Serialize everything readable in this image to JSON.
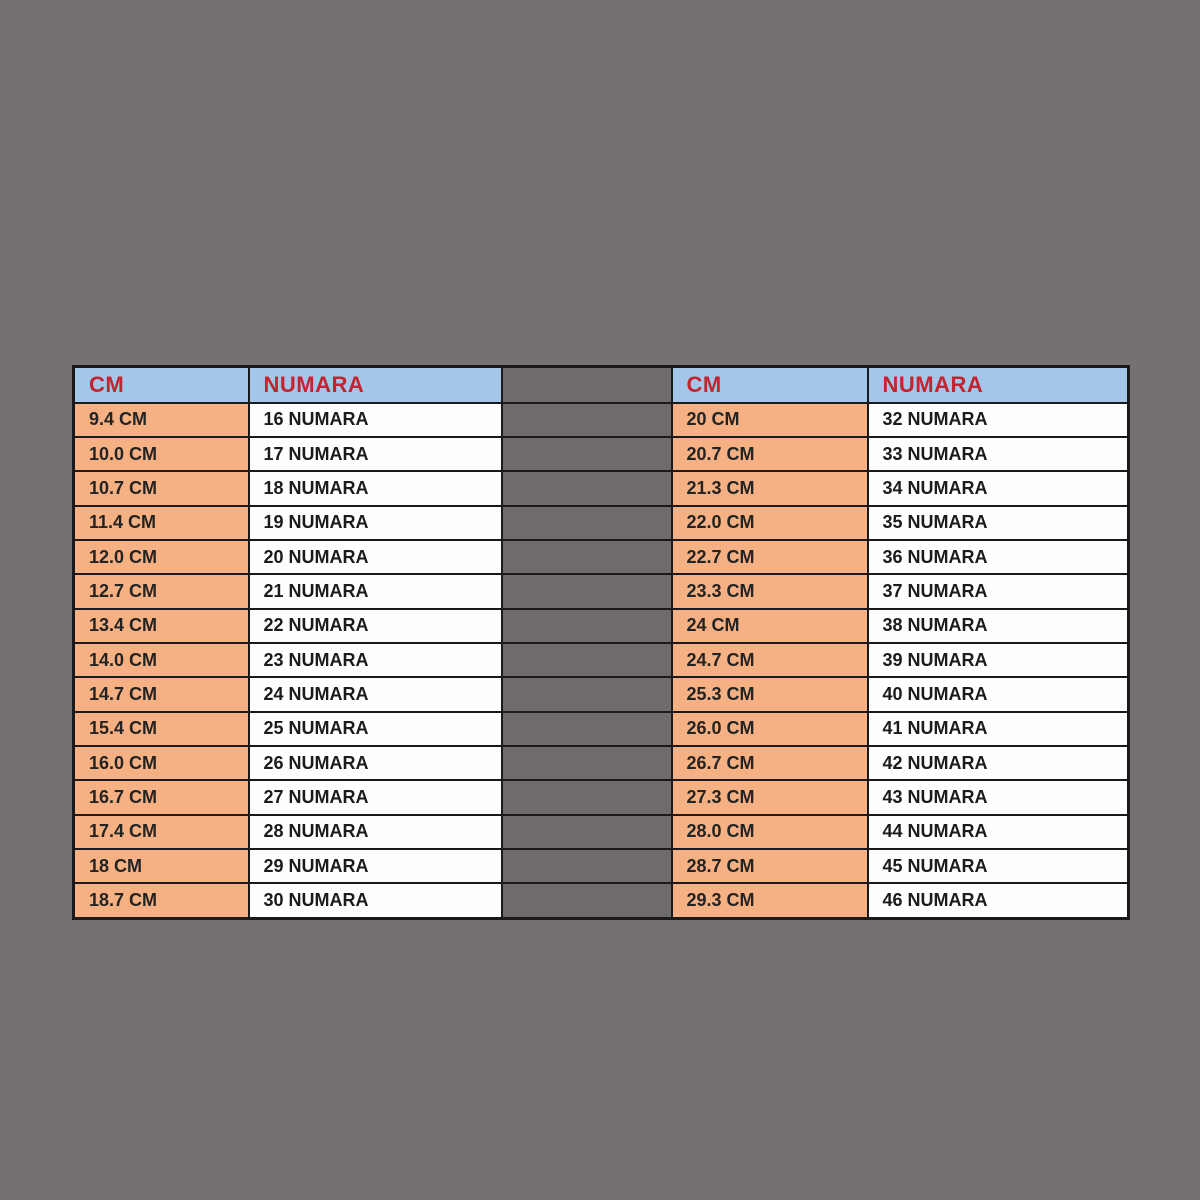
{
  "page": {
    "background_color": "#767171"
  },
  "colors": {
    "header_bg": "#A4C7E9",
    "header_text": "#C3242F",
    "cm_column_bg": "#F5B183",
    "numara_column_bg": "#FEFEFE",
    "spacer_bg": "#6F6B6A",
    "border": "#1A1A1A",
    "cell_text": "#1B1B1B"
  },
  "size_chart": {
    "left_table": {
      "headers": [
        "CM",
        "NUMARA"
      ],
      "rows": [
        [
          "9.4 CM",
          "16 NUMARA"
        ],
        [
          "10.0 CM",
          "17 NUMARA"
        ],
        [
          "10.7 CM",
          "18 NUMARA"
        ],
        [
          "11.4 CM",
          "19 NUMARA"
        ],
        [
          "12.0 CM",
          "20 NUMARA"
        ],
        [
          "12.7 CM",
          "21 NUMARA"
        ],
        [
          "13.4 CM",
          "22 NUMARA"
        ],
        [
          "14.0 CM",
          "23 NUMARA"
        ],
        [
          "14.7 CM",
          "24 NUMARA"
        ],
        [
          "15.4 CM",
          "25 NUMARA"
        ],
        [
          "16.0 CM",
          "26 NUMARA"
        ],
        [
          "16.7 CM",
          "27 NUMARA"
        ],
        [
          "17.4 CM",
          "28 NUMARA"
        ],
        [
          "18 CM",
          "29 NUMARA"
        ],
        [
          "18.7 CM",
          "30 NUMARA"
        ]
      ]
    },
    "right_table": {
      "headers": [
        "CM",
        "NUMARA"
      ],
      "rows": [
        [
          "20 CM",
          "32 NUMARA"
        ],
        [
          "20.7 CM",
          "33 NUMARA"
        ],
        [
          "21.3 CM",
          "34 NUMARA"
        ],
        [
          "22.0 CM",
          "35 NUMARA"
        ],
        [
          "22.7 CM",
          "36 NUMARA"
        ],
        [
          "23.3 CM",
          "37 NUMARA"
        ],
        [
          "24 CM",
          "38 NUMARA"
        ],
        [
          "24.7 CM",
          "39 NUMARA"
        ],
        [
          "25.3 CM",
          "40 NUMARA"
        ],
        [
          "26.0 CM",
          "41 NUMARA"
        ],
        [
          "26.7 CM",
          "42 NUMARA"
        ],
        [
          "27.3 CM",
          "43 NUMARA"
        ],
        [
          "28.0 CM",
          "44 NUMARA"
        ],
        [
          "28.7 CM",
          "45 NUMARA"
        ],
        [
          "29.3 CM",
          "46 NUMARA"
        ]
      ]
    }
  },
  "chart_data": [
    {
      "type": "table",
      "title": "Shoe size conversion (children / small sizes)",
      "columns": [
        "CM",
        "NUMARA"
      ],
      "rows": [
        [
          9.4,
          16
        ],
        [
          10.0,
          17
        ],
        [
          10.7,
          18
        ],
        [
          11.4,
          19
        ],
        [
          12.0,
          20
        ],
        [
          12.7,
          21
        ],
        [
          13.4,
          22
        ],
        [
          14.0,
          23
        ],
        [
          14.7,
          24
        ],
        [
          15.4,
          25
        ],
        [
          16.0,
          26
        ],
        [
          16.7,
          27
        ],
        [
          17.4,
          28
        ],
        [
          18.0,
          29
        ],
        [
          18.7,
          30
        ]
      ]
    },
    {
      "type": "table",
      "title": "Shoe size conversion (large sizes)",
      "columns": [
        "CM",
        "NUMARA"
      ],
      "rows": [
        [
          20.0,
          32
        ],
        [
          20.7,
          33
        ],
        [
          21.3,
          34
        ],
        [
          22.0,
          35
        ],
        [
          22.7,
          36
        ],
        [
          23.3,
          37
        ],
        [
          24.0,
          38
        ],
        [
          24.7,
          39
        ],
        [
          25.3,
          40
        ],
        [
          26.0,
          41
        ],
        [
          26.7,
          42
        ],
        [
          27.3,
          43
        ],
        [
          28.0,
          44
        ],
        [
          28.7,
          45
        ],
        [
          29.3,
          46
        ]
      ]
    }
  ]
}
